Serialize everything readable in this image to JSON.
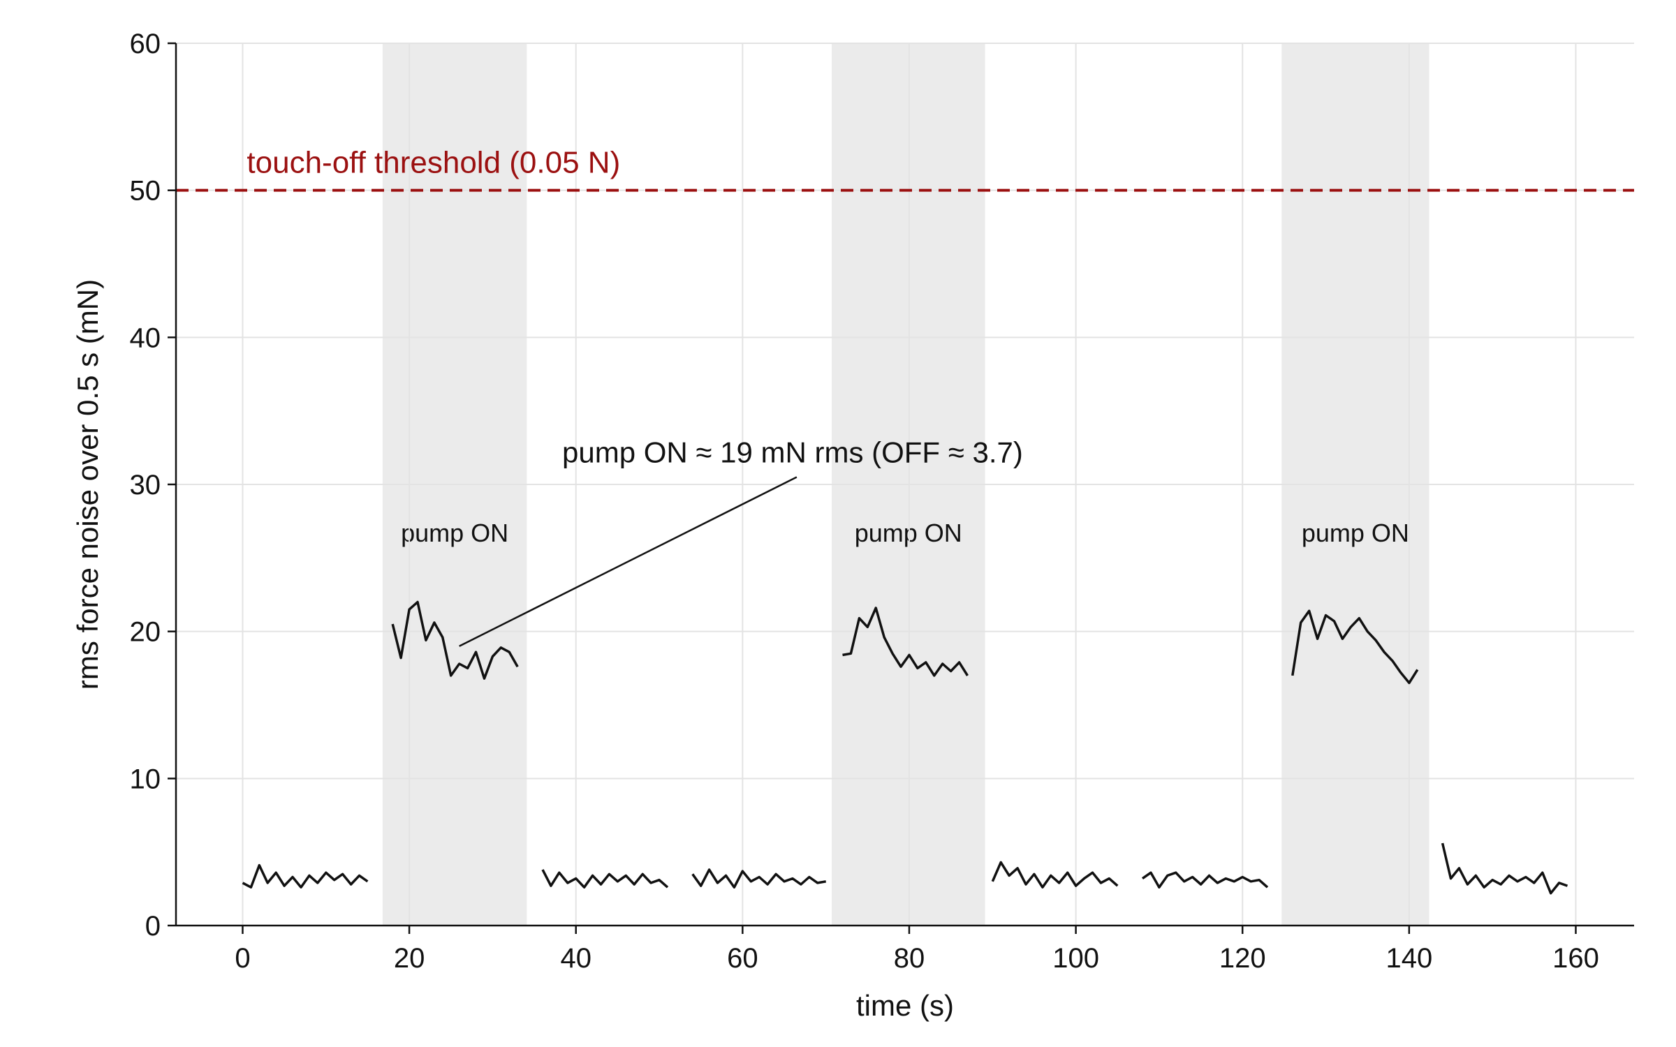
{
  "chart_data": {
    "type": "line",
    "title": "",
    "xlabel": "time (s)",
    "ylabel": "rms force noise over 0.5 s (mN)",
    "xlim": [
      -8,
      167
    ],
    "ylim": [
      0,
      60
    ],
    "xticks": [
      0,
      20,
      40,
      60,
      80,
      100,
      120,
      140,
      160
    ],
    "yticks": [
      0,
      10,
      20,
      30,
      40,
      50,
      60
    ],
    "grid": true,
    "colors": {
      "line": "#111111",
      "band": "#ebebeb",
      "threshold": "#9b1010",
      "grid": "#e3e3e3"
    },
    "threshold": {
      "value": 50,
      "label": "touch-off threshold (0.05 N)"
    },
    "bands": [
      {
        "x0": 16.8,
        "x1": 34.1,
        "label": "pump ON"
      },
      {
        "x0": 70.7,
        "x1": 89.1,
        "label": "pump ON"
      },
      {
        "x0": 124.7,
        "x1": 142.4,
        "label": "pump ON"
      }
    ],
    "annotation": {
      "text": "pump ON ≈ 19 mN rms  (OFF ≈ 3.7)",
      "text_at": [
        66,
        31.5
      ],
      "arrow_from": [
        66.5,
        30.5
      ],
      "arrow_to": [
        26,
        19
      ]
    },
    "series": [
      {
        "state": "off",
        "x": [
          0,
          1,
          2,
          3,
          4,
          5,
          6,
          7,
          8,
          9,
          10,
          11,
          12,
          13,
          14,
          15
        ],
        "y": [
          2.9,
          2.6,
          4.1,
          2.9,
          3.6,
          2.7,
          3.3,
          2.6,
          3.4,
          2.9,
          3.6,
          3.1,
          3.5,
          2.8,
          3.4,
          3.0
        ]
      },
      {
        "state": "on",
        "x": [
          18,
          19,
          20,
          21,
          22,
          23,
          24,
          25,
          26,
          27,
          28,
          29,
          30,
          31,
          32,
          33
        ],
        "y": [
          20.5,
          18.2,
          21.5,
          22.0,
          19.4,
          20.6,
          19.6,
          17.0,
          17.8,
          17.5,
          18.6,
          16.8,
          18.3,
          18.9,
          18.6,
          17.6
        ]
      },
      {
        "state": "off",
        "x": [
          36,
          37,
          38,
          39,
          40,
          41,
          42,
          43,
          44,
          45,
          46,
          47,
          48,
          49,
          50,
          51
        ],
        "y": [
          3.8,
          2.7,
          3.6,
          2.9,
          3.2,
          2.6,
          3.4,
          2.8,
          3.5,
          3.0,
          3.4,
          2.8,
          3.5,
          2.9,
          3.1,
          2.6
        ]
      },
      {
        "state": "off",
        "x": [
          54,
          55,
          56,
          57,
          58,
          59,
          60,
          61,
          62,
          63,
          64,
          65,
          66,
          67,
          68,
          69,
          70
        ],
        "y": [
          3.5,
          2.7,
          3.8,
          2.9,
          3.4,
          2.6,
          3.7,
          3.0,
          3.3,
          2.8,
          3.5,
          3.0,
          3.2,
          2.8,
          3.3,
          2.9,
          3.0
        ]
      },
      {
        "state": "on",
        "x": [
          72,
          73,
          74,
          75,
          76,
          77,
          78,
          79,
          80,
          81,
          82,
          83,
          84,
          85,
          86,
          87
        ],
        "y": [
          18.4,
          18.5,
          20.9,
          20.3,
          21.6,
          19.6,
          18.5,
          17.6,
          18.4,
          17.5,
          17.9,
          17.0,
          17.8,
          17.3,
          17.9,
          17.0
        ]
      },
      {
        "state": "off",
        "x": [
          90,
          91,
          92,
          93,
          94,
          95,
          96,
          97,
          98,
          99,
          100,
          101,
          102,
          103,
          104,
          105
        ],
        "y": [
          3.0,
          4.3,
          3.4,
          3.9,
          2.8,
          3.5,
          2.6,
          3.4,
          2.9,
          3.6,
          2.7,
          3.2,
          3.6,
          2.9,
          3.2,
          2.7
        ]
      },
      {
        "state": "off",
        "x": [
          108,
          109,
          110,
          111,
          112,
          113,
          114,
          115,
          116,
          117,
          118,
          119,
          120,
          121,
          122,
          123
        ],
        "y": [
          3.2,
          3.6,
          2.6,
          3.4,
          3.6,
          3.0,
          3.3,
          2.8,
          3.4,
          2.9,
          3.2,
          3.0,
          3.3,
          3.0,
          3.1,
          2.6
        ]
      },
      {
        "state": "on",
        "x": [
          126,
          127,
          128,
          129,
          130,
          131,
          132,
          133,
          134,
          135,
          136,
          137,
          138,
          139,
          140,
          141
        ],
        "y": [
          17.0,
          20.6,
          21.4,
          19.5,
          21.1,
          20.7,
          19.5,
          20.3,
          20.9,
          20.0,
          19.4,
          18.6,
          18.0,
          17.2,
          16.5,
          17.4
        ]
      },
      {
        "state": "off",
        "x": [
          144,
          145,
          146,
          147,
          148,
          149,
          150,
          151,
          152,
          153,
          154,
          155,
          156,
          157,
          158,
          159
        ],
        "y": [
          5.6,
          3.2,
          3.9,
          2.8,
          3.4,
          2.6,
          3.1,
          2.8,
          3.4,
          3.0,
          3.3,
          2.9,
          3.6,
          2.2,
          2.9,
          2.7
        ]
      }
    ]
  }
}
